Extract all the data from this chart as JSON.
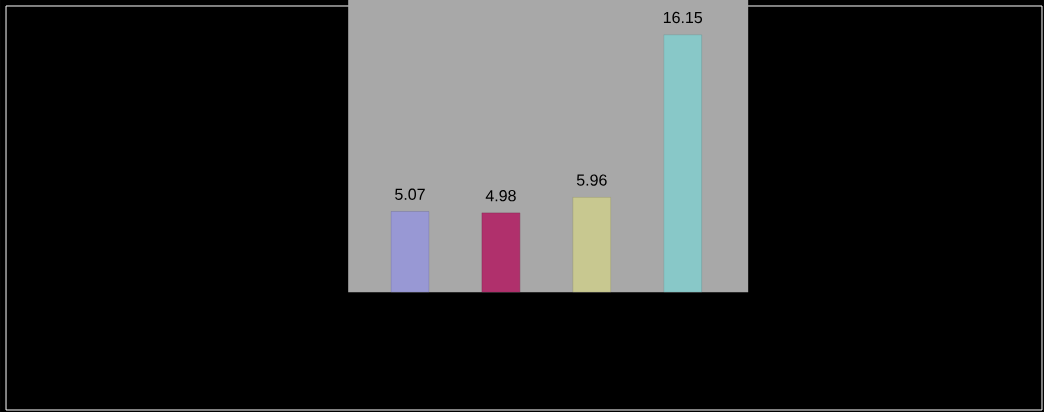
{
  "chart_data": {
    "type": "bar",
    "categories": [
      null,
      null,
      null,
      null
    ],
    "values": [
      5.07,
      4.98,
      5.96,
      16.15
    ],
    "colors": [
      "#9898d4",
      "#b0306c",
      "#c8c890",
      "#88c8c8"
    ],
    "data_labels": true
  }
}
